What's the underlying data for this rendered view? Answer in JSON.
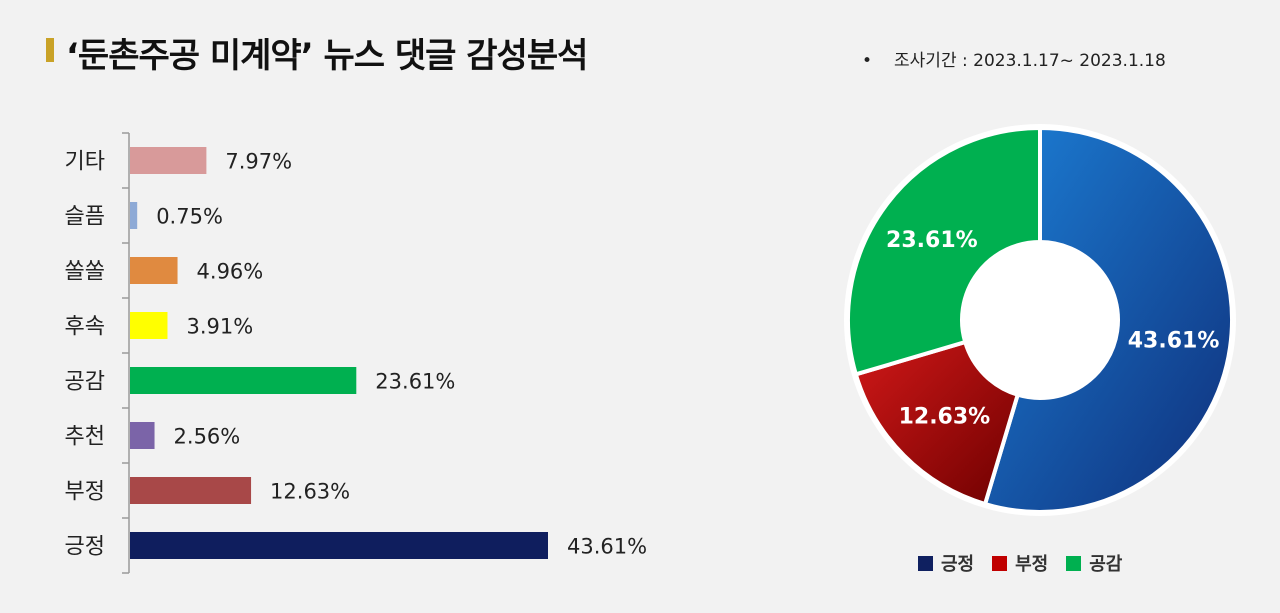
{
  "header": {
    "title": "‘둔촌주공 미계약’ 뉴스 댓글 감성분석",
    "bullet": "•",
    "period": "조사기간 : 2023.1.17~ 2023.1.18"
  },
  "colors": {
    "accent": "#c9a227",
    "긍정": "#0f1e5e",
    "부정": "#a84848",
    "추천": "#7b64a8",
    "공감": "#00b050",
    "후속": "#ffff00",
    "쏠쏠": "#e08a40",
    "슬픔": "#8eaad6",
    "기타": "#d89a9a"
  },
  "chart_data": [
    {
      "type": "bar",
      "orientation": "horizontal",
      "categories": [
        "기타",
        "슬픔",
        "쏠쏠",
        "후속",
        "공감",
        "추천",
        "부정",
        "긍정"
      ],
      "values": [
        7.97,
        0.75,
        4.96,
        3.91,
        23.61,
        2.56,
        12.63,
        43.61
      ],
      "labels": [
        "7.97%",
        "0.75%",
        "4.96%",
        "3.91%",
        "23.61%",
        "2.56%",
        "12.63%",
        "43.61%"
      ],
      "colors": [
        "#d89a9a",
        "#8eaad6",
        "#e08a40",
        "#ffff00",
        "#00b050",
        "#7b64a8",
        "#a84848",
        "#0f1e5e"
      ],
      "xlim": [
        0,
        45
      ]
    },
    {
      "type": "pie",
      "donut": true,
      "categories": [
        "긍정",
        "부정",
        "공감"
      ],
      "values": [
        43.61,
        12.63,
        23.61
      ],
      "labels": [
        "43.61%",
        "12.63%",
        "23.61%"
      ],
      "colors": [
        [
          "#1c7fd6",
          "#0f2f7a"
        ],
        [
          "#d01818",
          "#6e0000"
        ],
        [
          "#00b050",
          "#00b050"
        ]
      ],
      "legend": {
        "position": "bottom",
        "items": [
          "긍정",
          "부정",
          "공감"
        ],
        "colors": [
          "#0f2060",
          "#c00000",
          "#00b050"
        ]
      }
    }
  ]
}
